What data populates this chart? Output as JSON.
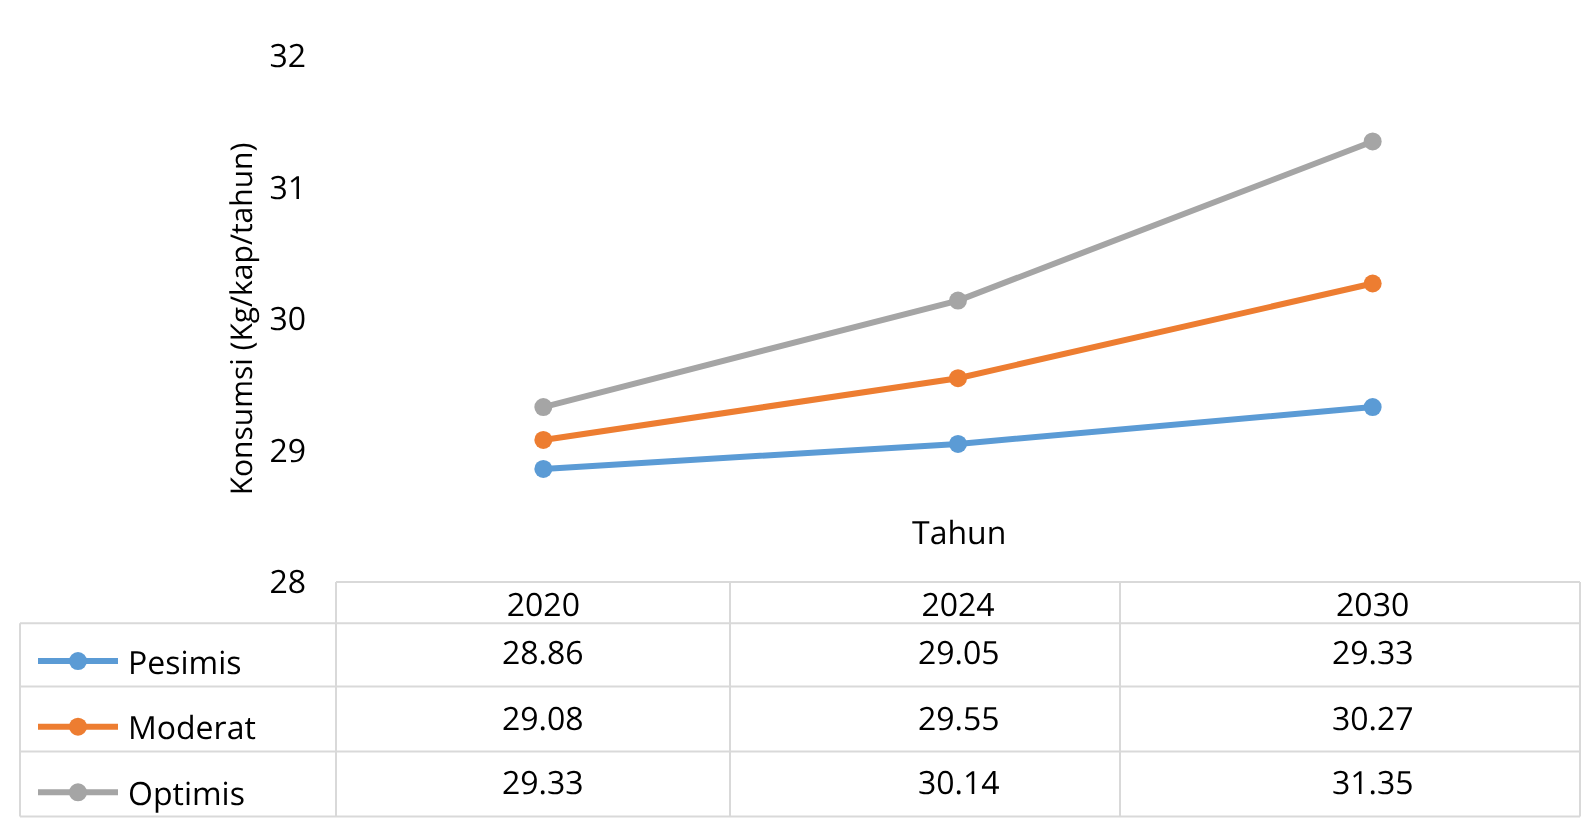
{
  "chart_data": {
    "type": "line",
    "xlabel": "Tahun",
    "ylabel": "Konsumsi (Kg/kap/tahun)",
    "categories": [
      "2020",
      "2024",
      "2030"
    ],
    "series": [
      {
        "name": "Pesimis",
        "color": "#5b9bd5",
        "values": [
          28.86,
          29.05,
          29.33
        ]
      },
      {
        "name": "Moderat",
        "color": "#ed7d31",
        "values": [
          29.08,
          29.55,
          30.27
        ]
      },
      {
        "name": "Optimis",
        "color": "#a5a5a5",
        "values": [
          29.33,
          30.14,
          31.35
        ]
      }
    ],
    "ylim": [
      28,
      32
    ],
    "yticks": [
      28,
      29,
      30,
      31,
      32
    ],
    "grid": false,
    "legend": "bottom left",
    "marker": "circle",
    "line_style": "solid",
    "data_labels": true
  }
}
